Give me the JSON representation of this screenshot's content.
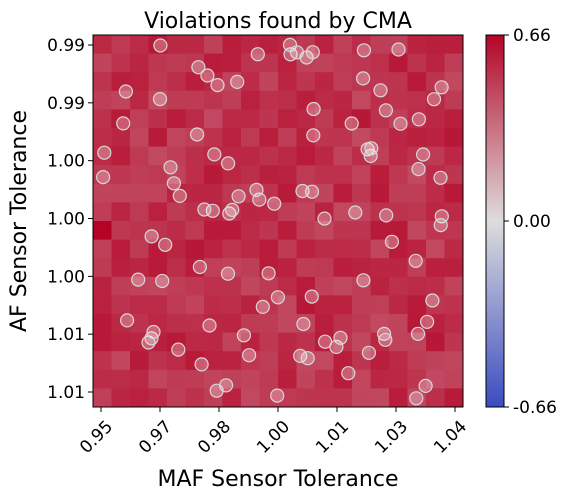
{
  "chart_data": {
    "type": "heatmap",
    "title": "Violations found by CMA",
    "xlabel": "MAF Sensor Tolerance",
    "ylabel": "AF Sensor Tolerance",
    "x_tick_labels": [
      "0.95",
      "0.97",
      "0.98",
      "1.00",
      "1.01",
      "1.03",
      "1.04"
    ],
    "y_tick_labels": [
      "0.99",
      "0.99",
      "1.00",
      "1.00",
      "1.00",
      "1.01",
      "1.01"
    ],
    "colorbar": {
      "colormap": "coolwarm",
      "vmin": -0.66,
      "vmax": 0.66,
      "tick_labels": [
        "0.66",
        "0.00",
        "-0.66"
      ]
    },
    "grid_size": [
      20,
      20
    ],
    "cell_value_range": [
      0.45,
      0.6
    ],
    "highlight_cell": {
      "row": 10,
      "col": 0,
      "value": 0.66
    },
    "marker_style": {
      "fill": "rgba(255,255,255,0.28)",
      "edge": "#d8d8d8"
    },
    "n_points": 95
  },
  "colors": {
    "low": "#3b4cc0",
    "mid": "#dddddd",
    "high": "#b40426"
  }
}
